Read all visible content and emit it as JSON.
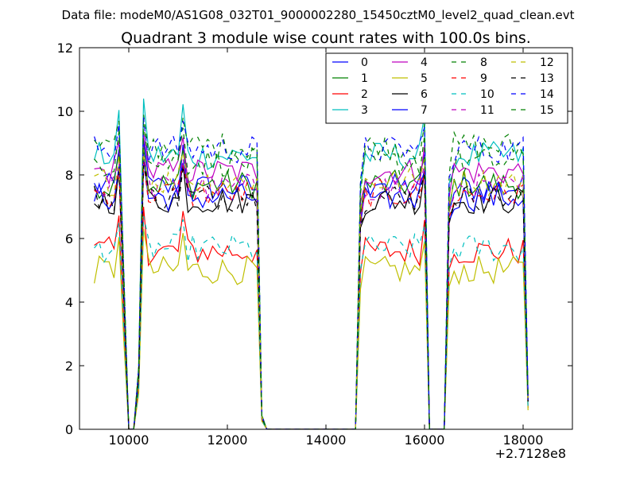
{
  "chart_data": {
    "type": "line",
    "suptitle": "Data file: modeM0/AS1G08_032T01_9000002280_15450cztM0_level2_quad_clean.evt",
    "title": "Quadrant 3 module wise count rates with 100.0s bins.",
    "xlabel": "",
    "ylabel": "",
    "x_offset_label": "+2.7128e8",
    "xlim": [
      9000,
      19000
    ],
    "ylim": [
      0,
      12
    ],
    "xticks": [
      10000,
      12000,
      14000,
      16000,
      18000
    ],
    "xtick_labels": [
      "10000",
      "12000",
      "14000",
      "16000",
      "18000"
    ],
    "yticks": [
      0,
      2,
      4,
      6,
      8,
      10,
      12
    ],
    "ytick_labels": [
      "0",
      "2",
      "4",
      "6",
      "8",
      "10",
      "12"
    ],
    "grid": false,
    "legend_position": "top-right",
    "legend_columns": 4,
    "segments": [
      {
        "start": 9300,
        "end": 9800
      },
      {
        "start": 10300,
        "end": 12600
      },
      {
        "start": 14800,
        "end": 16000
      },
      {
        "start": 16600,
        "end": 18000
      }
    ],
    "gap_points": [
      9900,
      10000,
      10100,
      10200,
      12700,
      12800,
      14600,
      14700,
      16100,
      16200,
      16400,
      16500,
      18100
    ],
    "series": [
      {
        "name": "0",
        "color": "#0000ff",
        "dash": "solid",
        "level": 7.6,
        "spike": 1.5
      },
      {
        "name": "1",
        "color": "#008000",
        "dash": "solid",
        "level": 7.7,
        "spike": 1.2
      },
      {
        "name": "2",
        "color": "#ff0000",
        "dash": "solid",
        "level": 5.6,
        "spike": 1.4
      },
      {
        "name": "3",
        "color": "#00bfbf",
        "dash": "solid",
        "level": 8.6,
        "spike": 1.8
      },
      {
        "name": "4",
        "color": "#bf00bf",
        "dash": "solid",
        "level": 8.1,
        "spike": 1.2
      },
      {
        "name": "5",
        "color": "#bfbf00",
        "dash": "solid",
        "level": 5.0,
        "spike": 1.3
      },
      {
        "name": "6",
        "color": "#000000",
        "dash": "solid",
        "level": 7.2,
        "spike": 1.3
      },
      {
        "name": "7",
        "color": "#0000ff",
        "dash": "solid",
        "level": 7.3,
        "spike": 1.2
      },
      {
        "name": "8",
        "color": "#008000",
        "dash": "dashed",
        "level": 8.9,
        "spike": 1.0
      },
      {
        "name": "9",
        "color": "#ff0000",
        "dash": "dashed",
        "level": 7.4,
        "spike": 1.0
      },
      {
        "name": "10",
        "color": "#00bfbf",
        "dash": "dashed",
        "level": 5.7,
        "spike": 1.0
      },
      {
        "name": "11",
        "color": "#bf00bf",
        "dash": "dashed",
        "level": 7.6,
        "spike": 1.0
      },
      {
        "name": "12",
        "color": "#bfbf00",
        "dash": "dashed",
        "level": 7.8,
        "spike": 1.0
      },
      {
        "name": "13",
        "color": "#000000",
        "dash": "dashed",
        "level": 7.3,
        "spike": 1.0
      },
      {
        "name": "14",
        "color": "#0000ff",
        "dash": "dashed",
        "level": 8.8,
        "spike": 1.0
      },
      {
        "name": "15",
        "color": "#008000",
        "dash": "dashed",
        "level": 8.4,
        "spike": 1.2
      }
    ]
  }
}
